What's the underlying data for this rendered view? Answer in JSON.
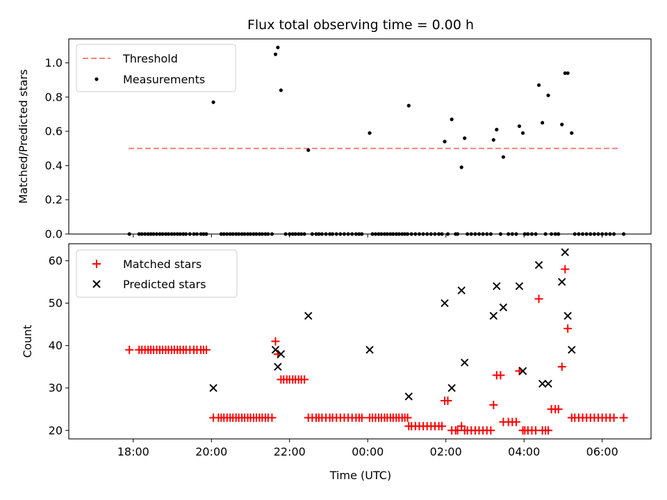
{
  "chart_data": {
    "title": "Flux total observing time = 0.00 h",
    "xlabel": "Time (UTC)",
    "x_unit": "hours relative to 00:00 UTC (negative = previous evening)",
    "x_range": [
      -7.65,
      7.25
    ],
    "x_ticks": [
      {
        "value": -6,
        "label": "18:00"
      },
      {
        "value": -4,
        "label": "20:00"
      },
      {
        "value": -2,
        "label": "22:00"
      },
      {
        "value": 0,
        "label": "00:00"
      },
      {
        "value": 2,
        "label": "02:00"
      },
      {
        "value": 4,
        "label": "04:00"
      },
      {
        "value": 6,
        "label": "06:00"
      }
    ],
    "top": {
      "type": "scatter",
      "ylabel": "Matched/Predicted stars",
      "ylim": [
        0,
        1.14
      ],
      "yticks": [
        "0.0",
        "0.2",
        "0.4",
        "0.6",
        "0.8",
        "1.0"
      ],
      "legend": {
        "placement": "upper-left",
        "threshold_label": "Threshold",
        "measurements_label": "Measurements"
      },
      "threshold": {
        "value": 0.5,
        "x_start": -6.12,
        "x_end": 6.45,
        "color": "#ff7f7f"
      },
      "measurements": [
        [
          -6.1,
          0
        ],
        [
          -5.85,
          0
        ],
        [
          -5.78,
          0
        ],
        [
          -5.7,
          0
        ],
        [
          -5.62,
          0
        ],
        [
          -5.55,
          0
        ],
        [
          -5.48,
          0
        ],
        [
          -5.4,
          0
        ],
        [
          -5.32,
          0
        ],
        [
          -5.25,
          0
        ],
        [
          -5.17,
          0
        ],
        [
          -5.1,
          0
        ],
        [
          -5.02,
          0
        ],
        [
          -4.95,
          0
        ],
        [
          -4.87,
          0
        ],
        [
          -4.8,
          0
        ],
        [
          -4.72,
          0
        ],
        [
          -4.65,
          0
        ],
        [
          -4.55,
          0
        ],
        [
          -4.45,
          0
        ],
        [
          -4.37,
          0
        ],
        [
          -4.27,
          0
        ],
        [
          -4.2,
          0
        ],
        [
          -4.13,
          0
        ],
        [
          -3.95,
          0.77
        ],
        [
          -3.75,
          0
        ],
        [
          -3.68,
          0
        ],
        [
          -3.6,
          0
        ],
        [
          -3.52,
          0
        ],
        [
          -3.45,
          0
        ],
        [
          -3.37,
          0
        ],
        [
          -3.3,
          0
        ],
        [
          -3.22,
          0
        ],
        [
          -3.15,
          0
        ],
        [
          -3.07,
          0
        ],
        [
          -3.0,
          0
        ],
        [
          -2.92,
          0
        ],
        [
          -2.85,
          0
        ],
        [
          -2.77,
          0
        ],
        [
          -2.7,
          0
        ],
        [
          -2.62,
          0
        ],
        [
          -2.55,
          0
        ],
        [
          -2.45,
          0
        ],
        [
          -2.36,
          1.05
        ],
        [
          -2.3,
          1.09
        ],
        [
          -2.22,
          0.84
        ],
        [
          -2.1,
          0
        ],
        [
          -2.0,
          0
        ],
        [
          -1.92,
          0
        ],
        [
          -1.85,
          0
        ],
        [
          -1.77,
          0
        ],
        [
          -1.7,
          0
        ],
        [
          -1.62,
          0
        ],
        [
          -1.52,
          0.49
        ],
        [
          -1.42,
          0
        ],
        [
          -1.32,
          0
        ],
        [
          -1.25,
          0
        ],
        [
          -1.17,
          0
        ],
        [
          -1.07,
          0
        ],
        [
          -0.97,
          0
        ],
        [
          -0.9,
          0
        ],
        [
          -0.8,
          0
        ],
        [
          -0.7,
          0
        ],
        [
          -0.6,
          0
        ],
        [
          -0.5,
          0
        ],
        [
          -0.4,
          0
        ],
        [
          -0.3,
          0
        ],
        [
          -0.22,
          0
        ],
        [
          -0.15,
          0
        ],
        [
          0.05,
          0.59
        ],
        [
          0.12,
          0
        ],
        [
          0.2,
          0
        ],
        [
          0.28,
          0
        ],
        [
          0.35,
          0
        ],
        [
          0.43,
          0
        ],
        [
          0.5,
          0
        ],
        [
          0.58,
          0
        ],
        [
          0.65,
          0
        ],
        [
          0.73,
          0
        ],
        [
          0.8,
          0
        ],
        [
          0.88,
          0
        ],
        [
          0.95,
          0
        ],
        [
          1.02,
          0
        ],
        [
          1.05,
          0.75
        ],
        [
          1.12,
          0
        ],
        [
          1.22,
          0
        ],
        [
          1.32,
          0
        ],
        [
          1.42,
          0
        ],
        [
          1.52,
          0
        ],
        [
          1.62,
          0
        ],
        [
          1.72,
          0
        ],
        [
          1.82,
          0
        ],
        [
          1.9,
          0
        ],
        [
          1.97,
          0.54
        ],
        [
          2.15,
          0.67
        ],
        [
          2.4,
          0.39
        ],
        [
          2.48,
          0.56
        ],
        [
          2.05,
          0
        ],
        [
          2.25,
          0
        ],
        [
          2.3,
          0
        ],
        [
          2.55,
          0
        ],
        [
          2.65,
          0
        ],
        [
          2.75,
          0
        ],
        [
          2.85,
          0
        ],
        [
          2.95,
          0
        ],
        [
          3.05,
          0
        ],
        [
          3.15,
          0
        ],
        [
          3.22,
          0.55
        ],
        [
          3.3,
          0.61
        ],
        [
          3.47,
          0.45
        ],
        [
          3.4,
          0
        ],
        [
          3.6,
          0
        ],
        [
          3.7,
          0
        ],
        [
          3.8,
          0
        ],
        [
          3.88,
          0.63
        ],
        [
          3.97,
          0.59
        ],
        [
          4.02,
          0
        ],
        [
          4.1,
          0
        ],
        [
          4.2,
          0
        ],
        [
          4.3,
          0
        ],
        [
          4.38,
          0.87
        ],
        [
          4.47,
          0.65
        ],
        [
          4.62,
          0.81
        ],
        [
          4.55,
          0
        ],
        [
          4.7,
          0
        ],
        [
          4.8,
          0
        ],
        [
          4.88,
          0
        ],
        [
          4.97,
          0.64
        ],
        [
          5.05,
          0.94
        ],
        [
          5.12,
          0.94
        ],
        [
          5.22,
          0.59
        ],
        [
          5.3,
          0
        ],
        [
          5.4,
          0
        ],
        [
          5.5,
          0
        ],
        [
          5.6,
          0
        ],
        [
          5.7,
          0
        ],
        [
          5.8,
          0
        ],
        [
          5.9,
          0
        ],
        [
          6.0,
          0
        ],
        [
          6.1,
          0
        ],
        [
          6.2,
          0
        ],
        [
          6.3,
          0
        ],
        [
          6.55,
          0
        ]
      ]
    },
    "bottom": {
      "type": "scatter",
      "ylabel": "Count",
      "ylim": [
        18,
        64
      ],
      "yticks": [
        "20",
        "30",
        "40",
        "50",
        "60"
      ],
      "legend": {
        "placement": "upper-left",
        "matched_label": "Matched stars",
        "predicted_label": "Predicted stars"
      },
      "matched_color": "#ff0000",
      "predicted_color": "#000000",
      "matched": [
        [
          -6.1,
          39
        ],
        [
          -5.85,
          39
        ],
        [
          -5.78,
          39
        ],
        [
          -5.7,
          39
        ],
        [
          -5.62,
          39
        ],
        [
          -5.55,
          39
        ],
        [
          -5.48,
          39
        ],
        [
          -5.4,
          39
        ],
        [
          -5.32,
          39
        ],
        [
          -5.25,
          39
        ],
        [
          -5.17,
          39
        ],
        [
          -5.1,
          39
        ],
        [
          -5.02,
          39
        ],
        [
          -4.95,
          39
        ],
        [
          -4.87,
          39
        ],
        [
          -4.8,
          39
        ],
        [
          -4.72,
          39
        ],
        [
          -4.65,
          39
        ],
        [
          -4.55,
          39
        ],
        [
          -4.45,
          39
        ],
        [
          -4.37,
          39
        ],
        [
          -4.27,
          39
        ],
        [
          -4.2,
          39
        ],
        [
          -4.13,
          39
        ],
        [
          -3.95,
          23
        ],
        [
          -3.82,
          23
        ],
        [
          -3.75,
          23
        ],
        [
          -3.68,
          23
        ],
        [
          -3.6,
          23
        ],
        [
          -3.52,
          23
        ],
        [
          -3.45,
          23
        ],
        [
          -3.37,
          23
        ],
        [
          -3.3,
          23
        ],
        [
          -3.22,
          23
        ],
        [
          -3.15,
          23
        ],
        [
          -3.07,
          23
        ],
        [
          -3.0,
          23
        ],
        [
          -2.92,
          23
        ],
        [
          -2.85,
          23
        ],
        [
          -2.77,
          23
        ],
        [
          -2.7,
          23
        ],
        [
          -2.62,
          23
        ],
        [
          -2.55,
          23
        ],
        [
          -2.45,
          23
        ],
        [
          -2.36,
          41
        ],
        [
          -2.3,
          38
        ],
        [
          -2.22,
          32
        ],
        [
          -2.15,
          32
        ],
        [
          -2.07,
          32
        ],
        [
          -2.0,
          32
        ],
        [
          -1.92,
          32
        ],
        [
          -1.85,
          32
        ],
        [
          -1.77,
          32
        ],
        [
          -1.7,
          32
        ],
        [
          -1.62,
          32
        ],
        [
          -1.52,
          23
        ],
        [
          -1.42,
          23
        ],
        [
          -1.32,
          23
        ],
        [
          -1.25,
          23
        ],
        [
          -1.17,
          23
        ],
        [
          -1.07,
          23
        ],
        [
          -0.97,
          23
        ],
        [
          -0.9,
          23
        ],
        [
          -0.8,
          23
        ],
        [
          -0.7,
          23
        ],
        [
          -0.6,
          23
        ],
        [
          -0.5,
          23
        ],
        [
          -0.4,
          23
        ],
        [
          -0.3,
          23
        ],
        [
          -0.22,
          23
        ],
        [
          -0.15,
          23
        ],
        [
          0.05,
          23
        ],
        [
          0.12,
          23
        ],
        [
          0.2,
          23
        ],
        [
          0.28,
          23
        ],
        [
          0.35,
          23
        ],
        [
          0.43,
          23
        ],
        [
          0.5,
          23
        ],
        [
          0.58,
          23
        ],
        [
          0.65,
          23
        ],
        [
          0.73,
          23
        ],
        [
          0.8,
          23
        ],
        [
          0.88,
          23
        ],
        [
          0.95,
          23
        ],
        [
          1.02,
          23
        ],
        [
          1.05,
          21
        ],
        [
          1.12,
          21
        ],
        [
          1.22,
          21
        ],
        [
          1.32,
          21
        ],
        [
          1.42,
          21
        ],
        [
          1.52,
          21
        ],
        [
          1.62,
          21
        ],
        [
          1.72,
          21
        ],
        [
          1.82,
          21
        ],
        [
          1.9,
          21
        ],
        [
          1.97,
          27
        ],
        [
          2.05,
          27
        ],
        [
          2.15,
          20
        ],
        [
          2.25,
          20
        ],
        [
          2.3,
          20
        ],
        [
          2.4,
          21
        ],
        [
          2.48,
          20
        ],
        [
          2.55,
          20
        ],
        [
          2.65,
          20
        ],
        [
          2.75,
          20
        ],
        [
          2.85,
          20
        ],
        [
          2.95,
          20
        ],
        [
          3.05,
          20
        ],
        [
          3.15,
          20
        ],
        [
          3.22,
          26
        ],
        [
          3.3,
          33
        ],
        [
          3.4,
          33
        ],
        [
          3.47,
          22
        ],
        [
          3.6,
          22
        ],
        [
          3.7,
          22
        ],
        [
          3.8,
          22
        ],
        [
          3.88,
          34
        ],
        [
          3.97,
          20
        ],
        [
          4.02,
          20
        ],
        [
          4.1,
          20
        ],
        [
          4.2,
          20
        ],
        [
          4.3,
          20
        ],
        [
          4.38,
          51
        ],
        [
          4.47,
          20
        ],
        [
          4.55,
          20
        ],
        [
          4.62,
          20
        ],
        [
          4.7,
          25
        ],
        [
          4.8,
          25
        ],
        [
          4.88,
          25
        ],
        [
          4.97,
          35
        ],
        [
          5.05,
          58
        ],
        [
          5.12,
          44
        ],
        [
          5.22,
          23
        ],
        [
          5.3,
          23
        ],
        [
          5.4,
          23
        ],
        [
          5.5,
          23
        ],
        [
          5.6,
          23
        ],
        [
          5.7,
          23
        ],
        [
          5.8,
          23
        ],
        [
          5.9,
          23
        ],
        [
          6.0,
          23
        ],
        [
          6.1,
          23
        ],
        [
          6.2,
          23
        ],
        [
          6.3,
          23
        ],
        [
          6.55,
          23
        ]
      ],
      "predicted": [
        [
          -3.95,
          30
        ],
        [
          -2.36,
          39
        ],
        [
          -2.3,
          35
        ],
        [
          -2.22,
          38
        ],
        [
          -1.52,
          47
        ],
        [
          0.05,
          39
        ],
        [
          1.05,
          28
        ],
        [
          1.97,
          50
        ],
        [
          2.15,
          30
        ],
        [
          2.4,
          53
        ],
        [
          2.48,
          36
        ],
        [
          3.22,
          47
        ],
        [
          3.3,
          54
        ],
        [
          3.47,
          49
        ],
        [
          3.88,
          54
        ],
        [
          3.97,
          34
        ],
        [
          4.38,
          59
        ],
        [
          4.47,
          31
        ],
        [
          4.62,
          31
        ],
        [
          4.97,
          55
        ],
        [
          5.05,
          62
        ],
        [
          5.12,
          47
        ],
        [
          5.22,
          39
        ]
      ]
    }
  }
}
